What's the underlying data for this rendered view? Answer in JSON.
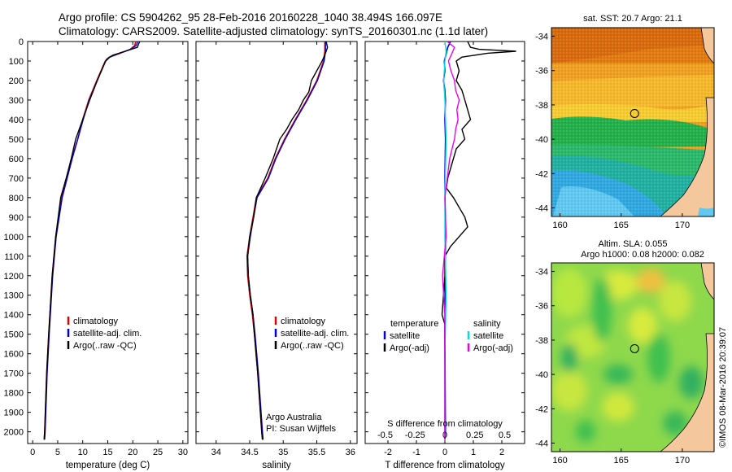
{
  "title_line1": "Argo profile: CS 5904262_95 28-Feb-2016 20160228_1040 38.494S 166.097E",
  "title_line2": "Climatology: CARS2009. Satellite-adjusted climatology: synTS_20160301.nc (1.1d later)",
  "watermark": "©IMOS 08-Mar-2016 20:39:07",
  "colors": {
    "climatology": "#e00000",
    "satellite": "#0000dd",
    "argo": "#000000",
    "cyan": "#00e0e0",
    "magenta": "#ee00ee"
  },
  "chart_data": [
    {
      "id": "temperature",
      "type": "line",
      "xlabel": "temperature (deg C)",
      "ylabel": "",
      "xlim": [
        -1,
        31
      ],
      "ylim": [
        2060,
        0
      ],
      "xticks": [
        0,
        5,
        10,
        15,
        20,
        25,
        30
      ],
      "yticks": [
        0,
        100,
        200,
        300,
        400,
        500,
        600,
        700,
        800,
        900,
        1000,
        1100,
        1200,
        1300,
        1400,
        1500,
        1600,
        1700,
        1800,
        1900,
        2000
      ],
      "legend": [
        "climatology",
        "satellite-adj. clim.",
        "Argo(..raw -QC)"
      ],
      "series": [
        {
          "name": "climatology",
          "color": "#e00000",
          "depth": [
            0,
            20,
            40,
            60,
            80,
            100,
            200,
            300,
            400,
            500,
            600,
            700,
            800,
            1000,
            1200,
            1500,
            1700,
            2000,
            2040
          ],
          "values": [
            20.6,
            20.4,
            19.5,
            17.5,
            15.3,
            14.5,
            12.8,
            11.2,
            10.0,
            9.0,
            7.8,
            6.8,
            5.8,
            4.6,
            3.9,
            3.2,
            2.8,
            2.4,
            2.3
          ]
        },
        {
          "name": "satellite-adj. clim.",
          "color": "#0000dd",
          "depth": [
            0,
            20,
            40,
            60,
            80,
            100,
            200,
            300,
            400,
            500,
            600,
            700,
            800,
            1000,
            1200,
            1500,
            1700,
            2000,
            2040
          ],
          "values": [
            21.0,
            20.7,
            19.6,
            17.3,
            15.4,
            14.6,
            12.9,
            11.3,
            10.1,
            9.0,
            7.9,
            6.9,
            5.9,
            4.7,
            4.0,
            3.3,
            2.9,
            2.5,
            2.4
          ]
        },
        {
          "name": "Argo(..raw -QC)",
          "color": "#000000",
          "depth": [
            0,
            10,
            30,
            50,
            70,
            90,
            120,
            200,
            300,
            400,
            450,
            500,
            600,
            700,
            800,
            1000,
            1200,
            1500,
            1700,
            2000,
            2040
          ],
          "values": [
            21.4,
            21.2,
            20.9,
            18.5,
            16.0,
            14.8,
            14.2,
            12.9,
            11.4,
            10.0,
            9.3,
            8.6,
            7.7,
            6.7,
            5.6,
            4.6,
            3.9,
            3.2,
            2.8,
            2.4,
            2.3
          ]
        }
      ]
    },
    {
      "id": "salinity",
      "type": "line",
      "xlabel": "salinity",
      "ylabel": "",
      "xlim": [
        33.7,
        36.1
      ],
      "ylim": [
        2060,
        0
      ],
      "xticks": [
        34,
        34.5,
        35,
        35.5,
        36
      ],
      "legend": [
        "climatology",
        "satellite-adj. clim.",
        "Argo(..raw -QC)"
      ],
      "annotation": [
        "Argo Australia",
        "PI: Susan Wijffels"
      ],
      "series": [
        {
          "name": "climatology",
          "color": "#e00000",
          "depth": [
            0,
            50,
            100,
            200,
            300,
            400,
            500,
            600,
            700,
            800,
            900,
            1000,
            1100,
            1200,
            1300,
            1400,
            1500,
            1700,
            2000,
            2040
          ],
          "values": [
            35.62,
            35.62,
            35.6,
            35.5,
            35.35,
            35.18,
            35.02,
            34.88,
            34.77,
            34.6,
            34.55,
            34.5,
            34.46,
            34.47,
            34.5,
            34.54,
            34.57,
            34.62,
            34.68,
            34.69
          ]
        },
        {
          "name": "satellite-adj. clim.",
          "color": "#0000dd",
          "depth": [
            0,
            50,
            100,
            200,
            300,
            400,
            500,
            600,
            700,
            800,
            900,
            1000,
            1100,
            1200,
            1300,
            1400,
            1500,
            1700,
            2000,
            2040
          ],
          "values": [
            35.63,
            35.63,
            35.61,
            35.51,
            35.36,
            35.19,
            35.03,
            34.89,
            34.78,
            34.61,
            34.56,
            34.51,
            34.47,
            34.48,
            34.51,
            34.55,
            34.58,
            34.63,
            34.69,
            34.7
          ]
        },
        {
          "name": "Argo(..raw -QC)",
          "color": "#000000",
          "depth": [
            0,
            30,
            60,
            100,
            150,
            200,
            260,
            300,
            350,
            400,
            450,
            500,
            550,
            600,
            700,
            800,
            900,
            1000,
            1100,
            1200,
            1300,
            1400,
            1500,
            1700,
            2000,
            2040
          ],
          "values": [
            35.64,
            35.66,
            35.63,
            35.58,
            35.5,
            35.42,
            35.38,
            35.3,
            35.23,
            35.13,
            35.05,
            34.95,
            34.9,
            34.85,
            34.73,
            34.6,
            34.56,
            34.5,
            34.47,
            34.48,
            34.51,
            34.55,
            34.57,
            34.62,
            34.68,
            34.69
          ]
        }
      ]
    },
    {
      "id": "difference",
      "type": "line",
      "xlabel": "T difference from climatology",
      "x2label": "S difference from climatology",
      "ylabel": "",
      "xlim": [
        -2.8,
        2.8
      ],
      "ylim": [
        2060,
        0
      ],
      "xticks": [
        -2,
        -1,
        0,
        1,
        2
      ],
      "x2ticks": [
        -0.5,
        -0.25,
        0,
        0.25,
        0.5
      ],
      "legend_temperature_heading": "temperature",
      "legend_salinity_heading": "salinity",
      "legend": [
        "satellite",
        "Argo(-adj)",
        "satellite",
        "Argo(-adj)"
      ],
      "series": [
        {
          "name": "T satellite",
          "color": "#0000dd",
          "depth": [
            0,
            30,
            60,
            100,
            150,
            200,
            250,
            300,
            400,
            500,
            700,
            1000,
            1500,
            2000,
            2040
          ],
          "values": [
            0.2,
            0.1,
            0.05,
            -0.02,
            0.0,
            -0.05,
            0.0,
            0.02,
            0.0,
            0.02,
            0.0,
            0.02,
            0.0,
            0.02,
            0.0
          ]
        },
        {
          "name": "T Argo(-adj)",
          "color": "#000000",
          "depth": [
            0,
            30,
            40,
            50,
            60,
            80,
            100,
            150,
            200,
            250,
            300,
            350,
            400,
            450,
            500,
            550,
            600,
            650,
            700,
            750,
            800,
            850,
            900,
            950,
            1000,
            1050,
            1100,
            1200,
            1300,
            1400,
            1450,
            1500,
            1600,
            1800,
            2000,
            2040
          ],
          "values": [
            0.8,
            0.9,
            1.2,
            2.5,
            1.5,
            0.6,
            0.4,
            0.5,
            0.4,
            0.6,
            0.7,
            0.8,
            0.9,
            0.6,
            0.7,
            0.4,
            0.3,
            0.2,
            0.1,
            0.05,
            0.3,
            0.5,
            0.7,
            0.8,
            0.5,
            0.2,
            0.0,
            0.0,
            -0.05,
            -0.1,
            0.0,
            0.0,
            0.0,
            0.0,
            0.0,
            0.0
          ]
        },
        {
          "name": "S satellite",
          "color": "#00e0e0",
          "depth": [
            0,
            50,
            100,
            200,
            300,
            500,
            800,
            1000,
            1300,
            1600,
            2000,
            2040
          ],
          "values": [
            0.0,
            0.01,
            0.0,
            -0.01,
            0.0,
            0.01,
            0.0,
            0.0,
            0.01,
            0.0,
            0.0,
            0.0
          ]
        },
        {
          "name": "S Argo(-adj)",
          "color": "#ee00ee",
          "depth": [
            0,
            30,
            60,
            100,
            150,
            200,
            250,
            300,
            350,
            400,
            450,
            500,
            550,
            600,
            700,
            800,
            1000,
            1200,
            1300,
            1400,
            1500,
            1700,
            2000,
            2040
          ],
          "values": [
            0.02,
            0.08,
            0.06,
            0.03,
            0.05,
            0.08,
            0.09,
            0.12,
            0.1,
            0.11,
            0.09,
            0.08,
            0.06,
            0.04,
            0.02,
            0.0,
            0.01,
            -0.02,
            -0.01,
            0.0,
            0.0,
            0.0,
            0.0,
            0.0
          ]
        }
      ]
    },
    {
      "id": "sst_map",
      "type": "heatmap",
      "title": "sat. SST: 20.7  Argo: 21.1",
      "xlim": [
        159.3,
        172.6
      ],
      "ylim": [
        -44.5,
        -33.5
      ],
      "xticks": [
        160,
        165,
        170
      ],
      "yticks": [
        -34,
        -36,
        -38,
        -40,
        -42,
        -44
      ],
      "marker": {
        "lon": 166.1,
        "lat": -38.5
      }
    },
    {
      "id": "sla_map",
      "type": "heatmap",
      "title_line1": "Altim. SLA: 0.055",
      "title_line2": "Argo h1000: 0.08 h2000: 0.082",
      "xlim": [
        159.3,
        172.6
      ],
      "ylim": [
        -44.5,
        -33.5
      ],
      "xticks": [
        160,
        165,
        170
      ],
      "yticks": [
        -34,
        -36,
        -38,
        -40,
        -42,
        -44
      ],
      "marker": {
        "lon": 166.1,
        "lat": -38.5
      }
    }
  ]
}
